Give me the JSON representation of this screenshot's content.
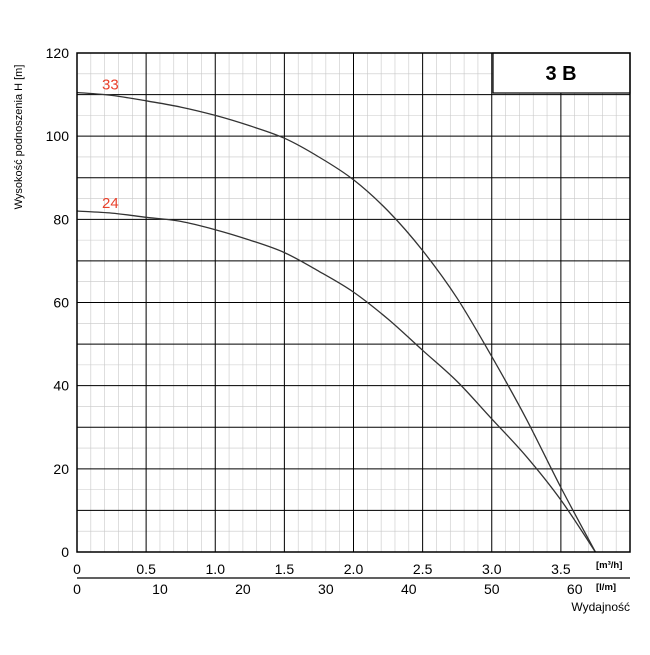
{
  "chart_data": {
    "type": "line",
    "title": "3 B",
    "ylabel": "Wysokość podnoszenia H [m]",
    "xlabel": "Wydajność",
    "ylim": [
      0,
      120
    ],
    "yticks": [
      0,
      20,
      40,
      60,
      80,
      100,
      120
    ],
    "xlim_m3h": [
      0,
      4.0
    ],
    "x_unit_top": "[m³/h]",
    "x_unit_bottom": "[l/m]",
    "xticks_m3h": [
      "0",
      "0.5",
      "1.0",
      "1.5",
      "2.0",
      "2.5",
      "3.0",
      "3.5"
    ],
    "xticks_lmin": [
      "0",
      "10",
      "20",
      "30",
      "40",
      "50",
      "60"
    ],
    "grid": true,
    "series": [
      {
        "name": "33",
        "color": "#333333",
        "label_color": "#e8412c",
        "x": [
          0,
          0.25,
          0.5,
          0.75,
          1.0,
          1.25,
          1.5,
          1.75,
          2.0,
          2.25,
          2.5,
          2.75,
          3.0,
          3.25,
          3.5,
          3.75
        ],
        "y": [
          110.5,
          109.8,
          108.5,
          107,
          105,
          102.5,
          99.5,
          95,
          89.5,
          82,
          72.5,
          61,
          47,
          32,
          15.5,
          0
        ]
      },
      {
        "name": "24",
        "color": "#333333",
        "label_color": "#e8412c",
        "x": [
          0,
          0.25,
          0.5,
          0.75,
          1.0,
          1.25,
          1.5,
          1.75,
          2.0,
          2.25,
          2.5,
          2.75,
          3.0,
          3.25,
          3.5,
          3.75
        ],
        "y": [
          82,
          81.5,
          80.5,
          79.5,
          77.5,
          75,
          72,
          67.5,
          62.5,
          56,
          48.5,
          41,
          32,
          23,
          12.5,
          0
        ]
      }
    ]
  }
}
